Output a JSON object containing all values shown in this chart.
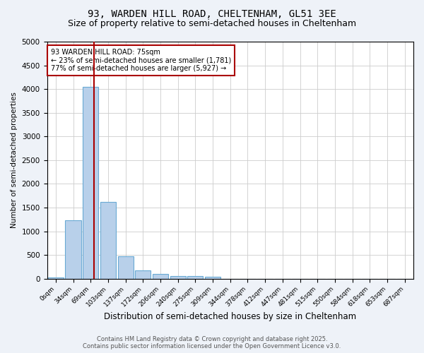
{
  "title1": "93, WARDEN HILL ROAD, CHELTENHAM, GL51 3EE",
  "title2": "Size of property relative to semi-detached houses in Cheltenham",
  "xlabel": "Distribution of semi-detached houses by size in Cheltenham",
  "ylabel": "Number of semi-detached properties",
  "categories": [
    "0sqm",
    "34sqm",
    "69sqm",
    "103sqm",
    "137sqm",
    "172sqm",
    "206sqm",
    "240sqm",
    "275sqm",
    "309sqm",
    "344sqm",
    "378sqm",
    "412sqm",
    "447sqm",
    "481sqm",
    "515sqm",
    "550sqm",
    "584sqm",
    "618sqm",
    "653sqm",
    "687sqm"
  ],
  "values": [
    30,
    1230,
    4050,
    1620,
    470,
    175,
    105,
    60,
    50,
    35,
    0,
    0,
    0,
    0,
    0,
    0,
    0,
    0,
    0,
    0,
    0
  ],
  "bar_color": "#b8d0ea",
  "bar_edge_color": "#6aaad4",
  "vline_x": 2.18,
  "vline_color": "#aa0000",
  "annotation_box_color": "#aa0000",
  "annotation_title": "93 WARDEN HILL ROAD: 75sqm",
  "annotation_line1": "← 23% of semi-detached houses are smaller (1,781)",
  "annotation_line2": "77% of semi-detached houses are larger (5,927) →",
  "ylim": [
    0,
    5000
  ],
  "yticks": [
    0,
    500,
    1000,
    1500,
    2000,
    2500,
    3000,
    3500,
    4000,
    4500,
    5000
  ],
  "footnote1": "Contains HM Land Registry data © Crown copyright and database right 2025.",
  "footnote2": "Contains public sector information licensed under the Open Government Licence v3.0.",
  "bg_color": "#eef2f8",
  "plot_bg_color": "#ffffff",
  "title_fontsize": 10,
  "subtitle_fontsize": 9
}
